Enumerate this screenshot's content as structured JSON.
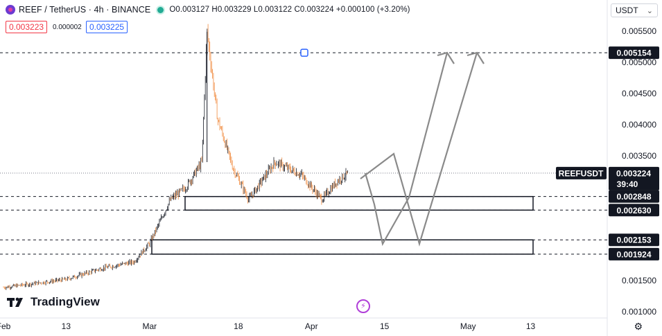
{
  "header": {
    "symbol_title": "REEF / TetherUS · 4h · BINANCE",
    "ohlc": "O0.003127 H0.003229 L0.003122 C0.003224 +0.000100 (+3.20%)",
    "bid": "0.003223",
    "spread": "0.000002",
    "ask": "0.003225",
    "currency": "USDT",
    "currency_caret": "⌄"
  },
  "price_axis": {
    "ticks": [
      "0.005500",
      "0.005000",
      "0.004500",
      "0.004000",
      "0.003500",
      "0.001500",
      "0.001000"
    ],
    "tags": {
      "top_line": "0.005154",
      "symbol_name": "REEFUSDT",
      "last_price": "0.003224",
      "countdown": "39:40",
      "zone1_top": "0.002848",
      "zone1_bottom": "0.002630",
      "zone2_top": "0.002153",
      "zone2_bottom": "0.001924"
    }
  },
  "time_axis": {
    "ticks": [
      "Feb",
      "13",
      "Mar",
      "18",
      "Apr",
      "15",
      "May",
      "13"
    ]
  },
  "branding": {
    "logo_text": "TradingView"
  },
  "icons": {
    "bolt": "lightning-icon",
    "settings": "gear-icon"
  },
  "colors": {
    "up": "#131722",
    "down": "#f0893c",
    "last_price_tag": "#131722",
    "projection": "#8a8a8a"
  },
  "chart_data": {
    "type": "candlestick",
    "symbol": "REEFUSDT",
    "interval": "4h",
    "last_price": 0.003224,
    "horizontal_levels": [
      0.005154,
      0.002848,
      0.00263,
      0.002153,
      0.001924
    ],
    "zones": [
      {
        "top": 0.002848,
        "bottom": 0.00263
      },
      {
        "top": 0.002153,
        "bottom": 0.001924
      }
    ],
    "ylim": [
      0.001,
      0.0058
    ],
    "approx_series": [
      {
        "date": "Feb 1",
        "price": 0.00139
      },
      {
        "date": "Feb 13",
        "price": 0.00152
      },
      {
        "date": "Feb 20",
        "price": 0.0017
      },
      {
        "date": "Feb 26",
        "price": 0.0018
      },
      {
        "date": "Mar 1",
        "price": 0.0021
      },
      {
        "date": "Mar 5",
        "price": 0.0028
      },
      {
        "date": "Mar 8",
        "price": 0.003
      },
      {
        "date": "Mar 11",
        "price": 0.0034
      },
      {
        "date": "Mar 12",
        "price": 0.0055
      },
      {
        "date": "Mar 14",
        "price": 0.0041
      },
      {
        "date": "Mar 17",
        "price": 0.0033
      },
      {
        "date": "Mar 20",
        "price": 0.0028
      },
      {
        "date": "Mar 25",
        "price": 0.0034
      },
      {
        "date": "Mar 30",
        "price": 0.0032
      },
      {
        "date": "Apr 3",
        "price": 0.0028
      },
      {
        "date": "Apr 6",
        "price": 0.0031
      },
      {
        "date": "Apr 8",
        "price": 0.003224
      }
    ]
  }
}
